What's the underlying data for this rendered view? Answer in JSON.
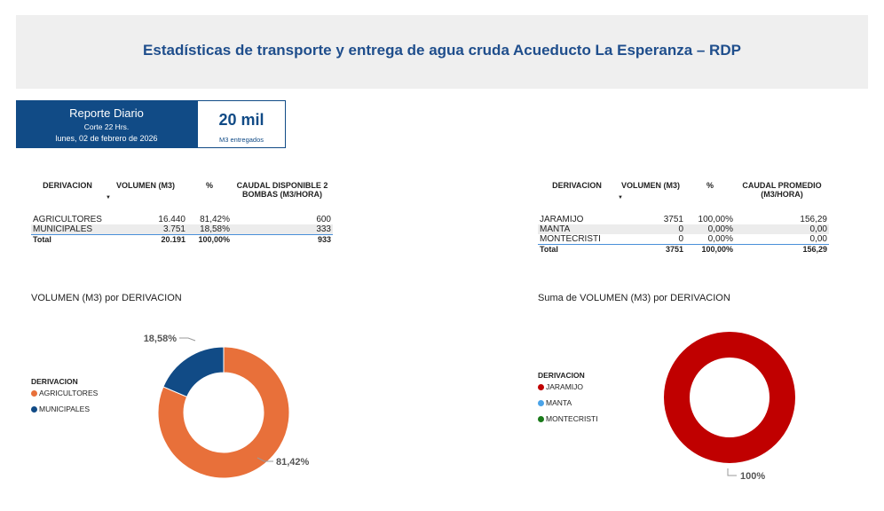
{
  "header": {
    "title": "Estadísticas de transporte y entrega de agua cruda Acueducto La Esperanza – RDP"
  },
  "report": {
    "title": "Reporte Diario",
    "cutoff": "Corte 22 Hrs.",
    "date": "lunes, 02 de febrero de 2026"
  },
  "kpi": {
    "value": "20 mil",
    "unit": "M3 entregados"
  },
  "table_left": {
    "headers": [
      "DERIVACION",
      "VOLUMEN (M3)",
      "%",
      "CAUDAL DISPONIBLE 2 BOMBAS (M3/HORA)"
    ],
    "rows": [
      [
        "AGRICULTORES",
        "16.440",
        "81,42%",
        "600"
      ],
      [
        "MUNICIPALES",
        "3.751",
        "18,58%",
        "333"
      ]
    ],
    "total": [
      "Total",
      "20.191",
      "100,00%",
      "933"
    ]
  },
  "table_right": {
    "headers": [
      "DERIVACION",
      "VOLUMEN (M3)",
      "%",
      "CAUDAL PROMEDIO (M3/HORA)"
    ],
    "rows": [
      [
        "JARAMIJO",
        "3751",
        "100,00%",
        "156,29"
      ],
      [
        "MANTA",
        "0",
        "0,00%",
        "0,00"
      ],
      [
        "MONTECRISTI",
        "0",
        "0,00%",
        "0,00"
      ]
    ],
    "total": [
      "Total",
      "3751",
      "100,00%",
      "156,29"
    ]
  },
  "chart_data": [
    {
      "type": "pie",
      "title": "VOLUMEN (M3) por DERIVACION",
      "legend_title": "DERIVACION",
      "legend_position": "left",
      "categories": [
        "AGRICULTORES",
        "MUNICIPALES"
      ],
      "values": [
        81.42,
        18.58
      ],
      "labels": [
        "81,42%",
        "18,58%"
      ],
      "colors": [
        "#e8703a",
        "#114b86"
      ]
    },
    {
      "type": "pie",
      "title": "Suma de VOLUMEN (M3) por DERIVACION",
      "legend_title": "DERIVACION",
      "legend_position": "left",
      "categories": [
        "JARAMIJO",
        "MANTA",
        "MONTECRISTI"
      ],
      "values": [
        100,
        0,
        0
      ],
      "labels": [
        "100%",
        "",
        ""
      ],
      "colors": [
        "#c00000",
        "#4aa3e8",
        "#1a7a1a"
      ]
    }
  ]
}
